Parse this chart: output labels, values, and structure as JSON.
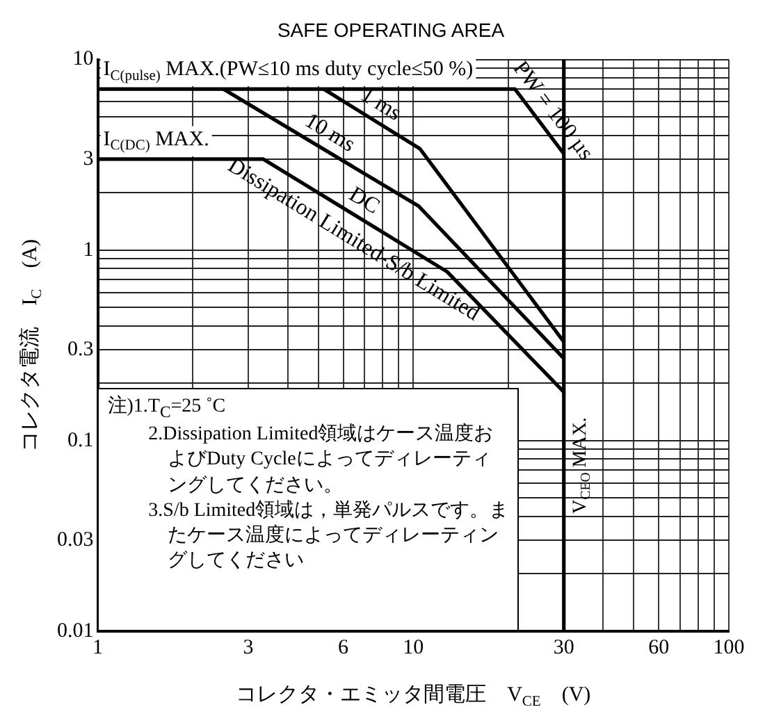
{
  "chart_data": {
    "type": "line",
    "title": "SAFE OPERATING AREA",
    "xlabel": "コレクタ・エミッタ間電圧　V$_{CE}$　(V)",
    "ylabel": "コレクタ電流　I$_{C}$　(A)",
    "series": [
      {
        "name": "PW = 100 µs",
        "color": "#000000",
        "x": [
          1,
          21,
          30
        ],
        "values": [
          7,
          7,
          3.2
        ]
      },
      {
        "name": "1 ms",
        "color": "#000000",
        "x": [
          5.2,
          10.5,
          30
        ],
        "values": [
          7,
          3.4,
          0.33
        ]
      },
      {
        "name": "10 ms",
        "color": "#000000",
        "x": [
          2.5,
          10.4,
          30
        ],
        "values": [
          7,
          1.7,
          0.27
        ]
      },
      {
        "name": "DC",
        "color": "#000000",
        "x": [
          1,
          3.35,
          12.8,
          30
        ],
        "values": [
          3,
          3,
          0.77,
          0.18
        ]
      }
    ],
    "log": "xy",
    "grid": true,
    "legend": false,
    "marker": "none",
    "xlim": [
      1,
      100
    ],
    "xticks": [
      1,
      {
        "value": 2,
        "label": null
      },
      3,
      {
        "value": 4,
        "label": null
      },
      {
        "value": 5,
        "label": null
      },
      6,
      {
        "value": 7,
        "label": null
      },
      {
        "value": 8,
        "label": null
      },
      {
        "value": 9,
        "label": null
      },
      10,
      {
        "value": 20,
        "label": null
      },
      30,
      {
        "value": 40,
        "label": null
      },
      {
        "value": 50,
        "label": null
      },
      60,
      {
        "value": 70,
        "label": null
      },
      {
        "value": 80,
        "label": null
      },
      {
        "value": 90,
        "label": null
      },
      100
    ],
    "ylim": [
      0.01,
      10
    ],
    "yticks": [
      0.01,
      {
        "value": 0.02,
        "label": null
      },
      0.03,
      {
        "value": 0.04,
        "label": null
      },
      {
        "value": 0.05,
        "label": null
      },
      {
        "value": 0.06,
        "label": null
      },
      {
        "value": 0.07,
        "label": null
      },
      {
        "value": 0.08,
        "label": null
      },
      {
        "value": 0.09,
        "label": null
      },
      0.1,
      {
        "value": 0.2,
        "label": null
      },
      0.3,
      {
        "value": 0.4,
        "label": null
      },
      {
        "value": 0.5,
        "label": null
      },
      {
        "value": 0.6,
        "label": null
      },
      {
        "value": 0.7,
        "label": null
      },
      {
        "value": 0.8,
        "label": null
      },
      {
        "value": 0.9,
        "label": null
      },
      1,
      {
        "value": 2,
        "label": null
      },
      3,
      {
        "value": 4,
        "label": null
      },
      {
        "value": 5,
        "label": null
      },
      {
        "value": 6,
        "label": null
      },
      {
        "value": 7,
        "label": null
      },
      {
        "value": 8,
        "label": null
      },
      {
        "value": 9,
        "label": null
      },
      10
    ],
    "ref_lines": [
      {
        "axis": "x",
        "value": 30,
        "label": "V$_{CEO}$ MAX.",
        "color": "#000000"
      }
    ],
    "annotations": [
      {
        "text": "I$_{C(pulse)}$ MAX.(PW≤10 ms duty cycle≤50 %)",
        "y": 7
      },
      {
        "text": "I$_{C(DC)}$ MAX.",
        "y": 3
      },
      {
        "text": "Dissipation Limited-S/b Limited",
        "x": 7,
        "y": 1.4
      },
      "注)1.T$_{C}$=25 ˚C",
      "2.Dissipation Limited領域はケース温度およびDuty Cycleによってディレーティングしてください。",
      "3.S/b Limited領域は，単発パルスです。またケース温度によってディレーティングしてください"
    ]
  }
}
